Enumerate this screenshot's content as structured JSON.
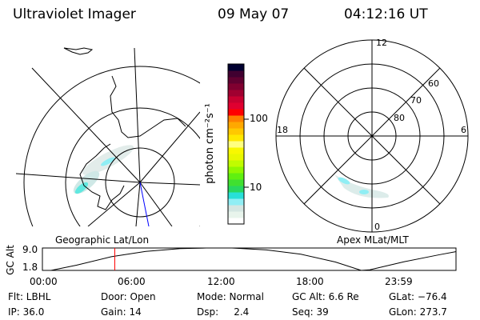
{
  "header": {
    "instrument": "Ultraviolet Imager",
    "date": "09 May 07",
    "time": "04:12:16 UT"
  },
  "colorbar": {
    "label": "photon cm⁻²s⁻¹",
    "ticks": [
      "100",
      "10"
    ],
    "scale": "log",
    "colors": [
      "#ffffff",
      "#e8f4ec",
      "#d4e6e2",
      "#90eef4",
      "#28e0d8",
      "#28d860",
      "#40e030",
      "#60f010",
      "#90f800",
      "#c0fc00",
      "#e8f800",
      "#f8f800",
      "#ffff80",
      "#ffe800",
      "#ffc800",
      "#ffa800",
      "#ff8000",
      "#ff0000",
      "#e00030",
      "#c80030",
      "#a00030",
      "#800030",
      "#600030",
      "#400030",
      "#000030"
    ]
  },
  "left_map": {
    "label": "Geographic Lat/Lon"
  },
  "right_map": {
    "label": "Apex MLat/MLT",
    "mlt_labels": [
      "12",
      "18",
      "6",
      "0"
    ],
    "lat_labels": [
      "60",
      "70",
      "80"
    ]
  },
  "chart_data": {
    "type": "line",
    "ylabel": "GC Alt",
    "yticks": [
      "9.0",
      "1.8"
    ],
    "ylim": [
      1.8,
      9.0
    ],
    "xticks": [
      "00:00",
      "06:00",
      "12:00",
      "18:00",
      "23:59"
    ],
    "x": [
      0.5,
      2,
      4,
      6,
      8,
      9.5,
      11,
      13,
      15,
      17,
      18.5,
      19,
      21,
      23,
      23.98
    ],
    "y": [
      1.8,
      3.5,
      6.2,
      7.9,
      8.8,
      9.0,
      9.0,
      8.4,
      7.0,
      4.5,
      1.8,
      2.0,
      4.6,
      6.8,
      7.8
    ],
    "current_time_marker": 4.2,
    "marker_color": "#ff0000"
  },
  "info": {
    "flt": "Flt: LBHL",
    "ip": "IP: 36.0",
    "door": "Door: Open",
    "gain": "Gain: 14",
    "mode": "Mode: Normal",
    "dsp": "Dsp:     2.4",
    "gcalt": "GC Alt: 6.6 Re",
    "seq": "Seq: 39",
    "glat": "GLat: −76.4",
    "glon": "GLon: 273.7"
  }
}
